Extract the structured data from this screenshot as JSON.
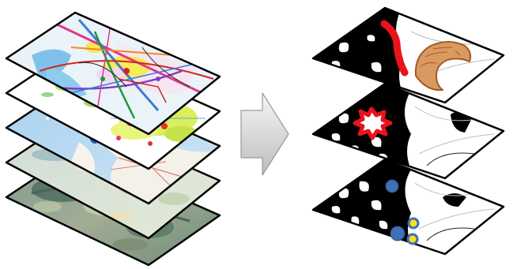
{
  "diagram": {
    "left_stack": {
      "layers": [
        {
          "name": "road-network-map-layer"
        },
        {
          "name": "land-use-map-layer"
        },
        {
          "name": "water-map-layer"
        },
        {
          "name": "terrain-map-layer"
        },
        {
          "name": "satellite-imagery-layer"
        }
      ]
    },
    "arrow": {
      "name": "transform-arrow-icon",
      "fill_top": "#f4f4f4",
      "fill_bottom": "#c4c4c4"
    },
    "right_stack": {
      "layers": [
        {
          "name": "route-and-zone-analysis-layer",
          "marks": [
            "red-route-line",
            "orange-zone-area"
          ]
        },
        {
          "name": "hotspot-analysis-layer",
          "marks": [
            "red-hotspot-burst"
          ]
        },
        {
          "name": "point-locations-layer",
          "marks": [
            "blue-location-point",
            "yellow-location-point"
          ]
        }
      ]
    },
    "colors": {
      "outline": "#000000",
      "route": "#e8131b",
      "zone": "#d99a61",
      "zone_outline": "#a35a20",
      "point_blue": "#3f6fb5",
      "point_yellow": "#f3e21b"
    }
  }
}
